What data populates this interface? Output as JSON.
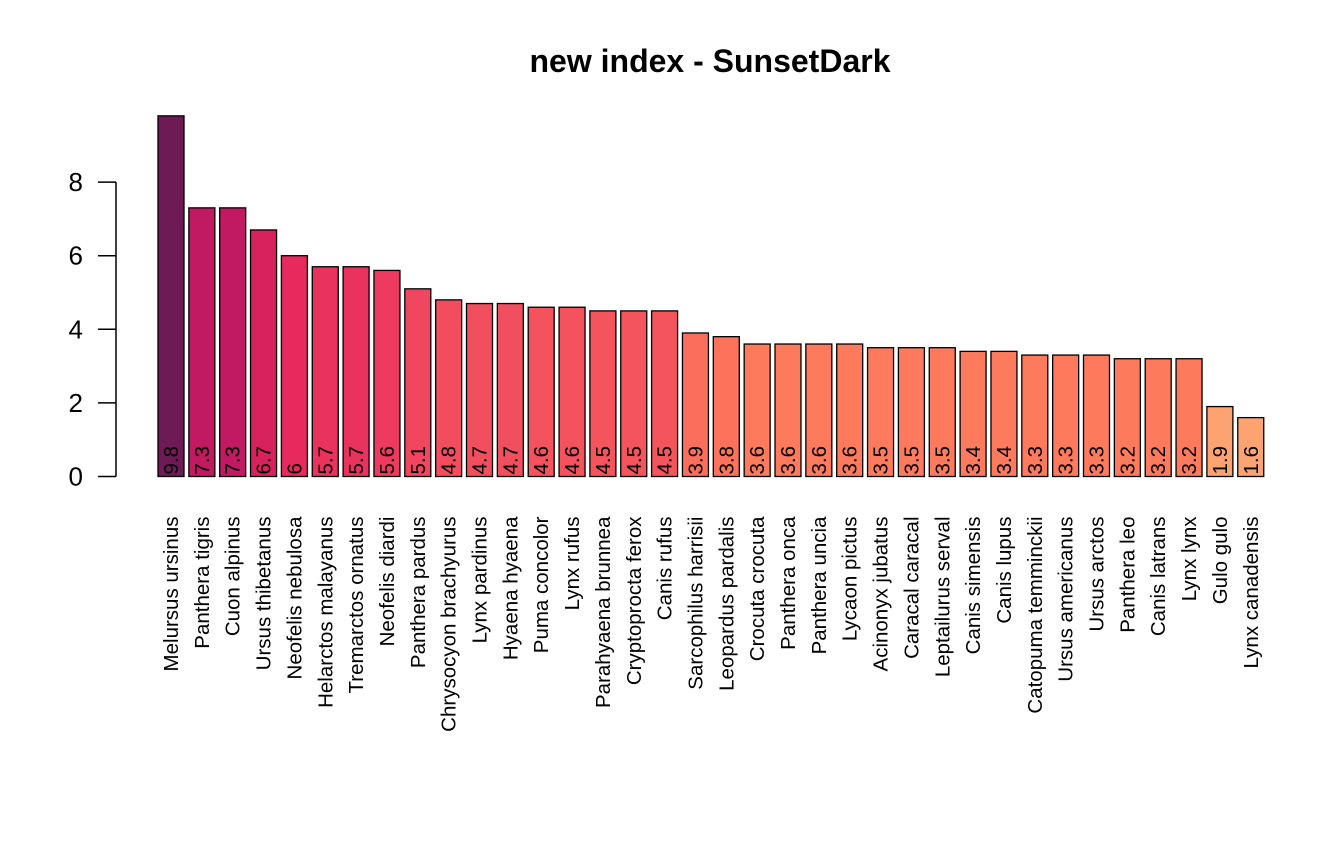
{
  "chart_data": {
    "type": "bar",
    "title": "new index - SunsetDark",
    "xlabel": "",
    "ylabel": "",
    "ylim": [
      0,
      9.8
    ],
    "yticks": [
      0,
      2,
      4,
      6,
      8
    ],
    "categories": [
      "Melursus ursinus",
      "Panthera tigris",
      "Cuon alpinus",
      "Ursus thibetanus",
      "Neofelis nebulosa",
      "Helarctos malayanus",
      "Tremarctos ornatus",
      "Neofelis diardi",
      "Panthera pardus",
      "Chrysocyon brachyurus",
      "Lynx pardinus",
      "Hyaena hyaena",
      "Puma concolor",
      "Lynx rufus",
      "Parahyaena brunnea",
      "Cryptoprocta ferox",
      "Canis rufus",
      "Sarcophilus harrisii",
      "Leopardus pardalis",
      "Crocuta crocuta",
      "Panthera onca",
      "Panthera uncia",
      "Lycaon pictus",
      "Acinonyx jubatus",
      "Caracal caracal",
      "Leptailurus serval",
      "Canis simensis",
      "Canis lupus",
      "Catopuma temminckii",
      "Ursus americanus",
      "Ursus arctos",
      "Panthera leo",
      "Canis latrans",
      "Lynx lynx",
      "Gulo gulo",
      "Lynx canadensis"
    ],
    "values": [
      9.8,
      7.3,
      7.3,
      6.7,
      6,
      5.7,
      5.7,
      5.6,
      5.1,
      4.8,
      4.7,
      4.7,
      4.6,
      4.6,
      4.5,
      4.5,
      4.5,
      3.9,
      3.8,
      3.6,
      3.6,
      3.6,
      3.6,
      3.5,
      3.5,
      3.5,
      3.4,
      3.4,
      3.3,
      3.3,
      3.3,
      3.2,
      3.2,
      3.2,
      1.9,
      1.6
    ],
    "value_labels": [
      "9.8",
      "7.3",
      "7.3",
      "6.7",
      "6",
      "5.7",
      "5.7",
      "5.6",
      "5.1",
      "4.8",
      "4.7",
      "4.7",
      "4.6",
      "4.6",
      "4.5",
      "4.5",
      "4.5",
      "3.9",
      "3.8",
      "3.6",
      "3.6",
      "3.6",
      "3.6",
      "3.5",
      "3.5",
      "3.5",
      "3.4",
      "3.4",
      "3.3",
      "3.3",
      "3.3",
      "3.2",
      "3.2",
      "3.2",
      "1.9",
      "1.6"
    ],
    "bar_colors": [
      "#6e1b55",
      "#c21a62",
      "#c21a62",
      "#d8225e",
      "#e7295e",
      "#ea325e",
      "#ea325e",
      "#ed3a5e",
      "#f04660",
      "#f24d5e",
      "#f24f5e",
      "#f24f5e",
      "#f4525d",
      "#f4525d",
      "#f4555c",
      "#f4555c",
      "#f4555c",
      "#fb6e5b",
      "#fc725b",
      "#fd7a5c",
      "#fd7a5c",
      "#fd7a5c",
      "#fd7a5c",
      "#fd7a5c",
      "#fd7a5c",
      "#fd7a5c",
      "#fd7a5c",
      "#fd7a5c",
      "#fd7a5c",
      "#fd7a5c",
      "#fd7a5c",
      "#fd7a5c",
      "#fd7a5c",
      "#fd7a5c",
      "#fca371",
      "#fca371"
    ]
  }
}
